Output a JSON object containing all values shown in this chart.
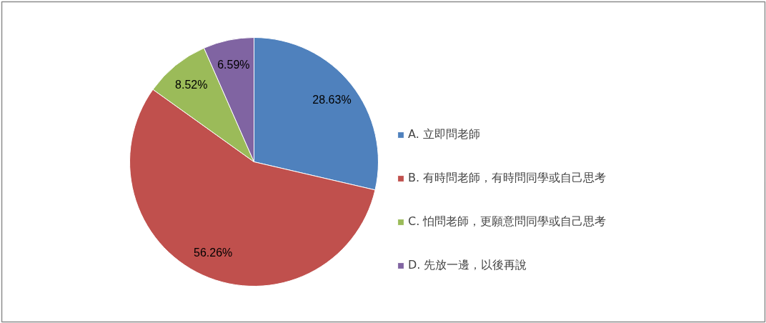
{
  "chart_data": {
    "type": "pie",
    "categories": [
      "A. 立即問老師",
      "B. 有時問老師，有時問同學或自己思考",
      "C. 怕問老師，更願意問同學或自己思考",
      "D. 先放一邊，以後再說"
    ],
    "values": [
      28.63,
      56.26,
      8.52,
      6.59
    ],
    "value_labels": [
      "28.63%",
      "56.26%",
      "8.52%",
      "6.59%"
    ],
    "colors": [
      "#4f81bd",
      "#c0504d",
      "#9bbb59",
      "#8064a2"
    ],
    "legend": "right"
  }
}
